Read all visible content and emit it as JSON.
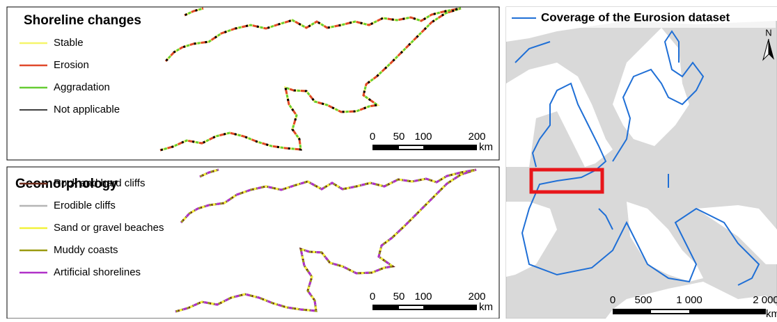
{
  "panels": [
    {
      "title": "Shoreline changes",
      "legend": [
        {
          "label": "Stable",
          "color": "#f5f56a"
        },
        {
          "label": "Erosion",
          "color": "#e0482a"
        },
        {
          "label": "Aggradation",
          "color": "#66cc33"
        },
        {
          "label": "Not applicable",
          "color": "#000000"
        }
      ],
      "scale": {
        "ticks": [
          "0",
          "50",
          "100",
          "200"
        ],
        "unit": "km"
      }
    },
    {
      "title": "Geomorphology",
      "legend": [
        {
          "label": "Rock and hard cliffs",
          "color": "#6b2a1a"
        },
        {
          "label": "Erodible cliffs",
          "color": "#b5b5b5"
        },
        {
          "label": "Sand or gravel beaches",
          "color": "#f2f23a"
        },
        {
          "label": "Muddy coasts",
          "color": "#9a9a10"
        },
        {
          "label": "Artificial shorelines",
          "color": "#b030c8"
        }
      ],
      "scale": {
        "ticks": [
          "0",
          "50",
          "100",
          "200"
        ],
        "unit": "km"
      }
    }
  ],
  "map": {
    "title": "Coverage of the Eurosion dataset",
    "north": "N",
    "line_color": "#1f6fd6",
    "scale": {
      "ticks": [
        "0",
        "500",
        "1 000",
        "2 000"
      ],
      "unit": "km"
    }
  }
}
